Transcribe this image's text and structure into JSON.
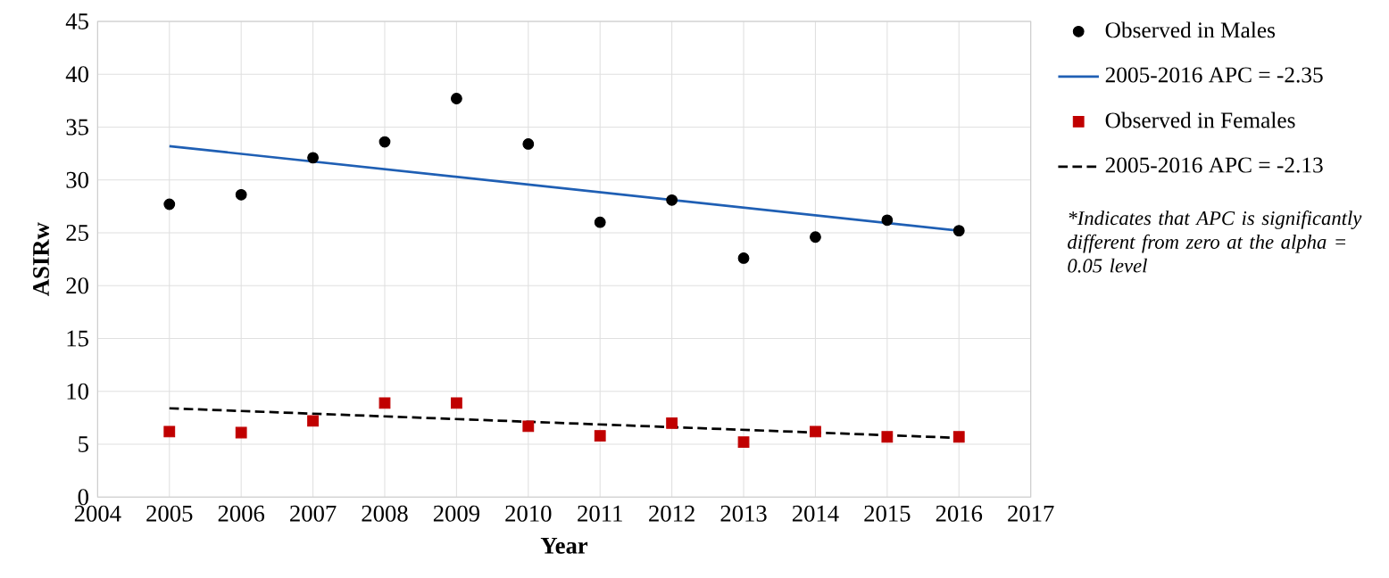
{
  "chart_data": {
    "type": "scatter",
    "xlabel": "Year",
    "ylabel": "ASIRw",
    "xlim": [
      2004,
      2017
    ],
    "xticks": [
      2004,
      2005,
      2006,
      2007,
      2008,
      2009,
      2010,
      2011,
      2012,
      2013,
      2014,
      2015,
      2016,
      2017
    ],
    "ylim": [
      0,
      45
    ],
    "yticks": [
      0,
      5,
      10,
      15,
      20,
      25,
      30,
      35,
      40,
      45
    ],
    "grid": true,
    "legend": "right",
    "annotations": [
      "*Indicates that APC is significantly different from zero at the alpha = 0.05 level"
    ],
    "series": [
      {
        "name": "Observed in Males",
        "type": "scatter",
        "marker": "circle",
        "color": "#000000",
        "x": [
          2005,
          2006,
          2007,
          2008,
          2009,
          2010,
          2011,
          2012,
          2013,
          2014,
          2015,
          2016
        ],
        "values": [
          27.7,
          28.6,
          32.1,
          33.6,
          37.7,
          33.4,
          26.0,
          28.1,
          22.6,
          24.6,
          26.2,
          25.2
        ]
      },
      {
        "name": "2005-2016 APC = -2.35",
        "type": "line",
        "marker": "none",
        "line_style": "solid",
        "color": "#1f5fb4",
        "x": [
          2005,
          2016
        ],
        "values": [
          33.2,
          25.2
        ]
      },
      {
        "name": "Observed in Females",
        "type": "scatter",
        "marker": "square",
        "color": "#c00000",
        "x": [
          2005,
          2006,
          2007,
          2008,
          2009,
          2010,
          2011,
          2012,
          2013,
          2014,
          2015,
          2016
        ],
        "values": [
          6.2,
          6.1,
          7.2,
          8.9,
          8.9,
          6.7,
          5.8,
          7.0,
          5.2,
          6.2,
          5.7,
          5.7
        ]
      },
      {
        "name": "2005-2016 APC = -2.13",
        "type": "line",
        "marker": "none",
        "line_style": "dashed",
        "color": "#000000",
        "x": [
          2005,
          2016
        ],
        "values": [
          8.4,
          5.6
        ]
      }
    ]
  }
}
